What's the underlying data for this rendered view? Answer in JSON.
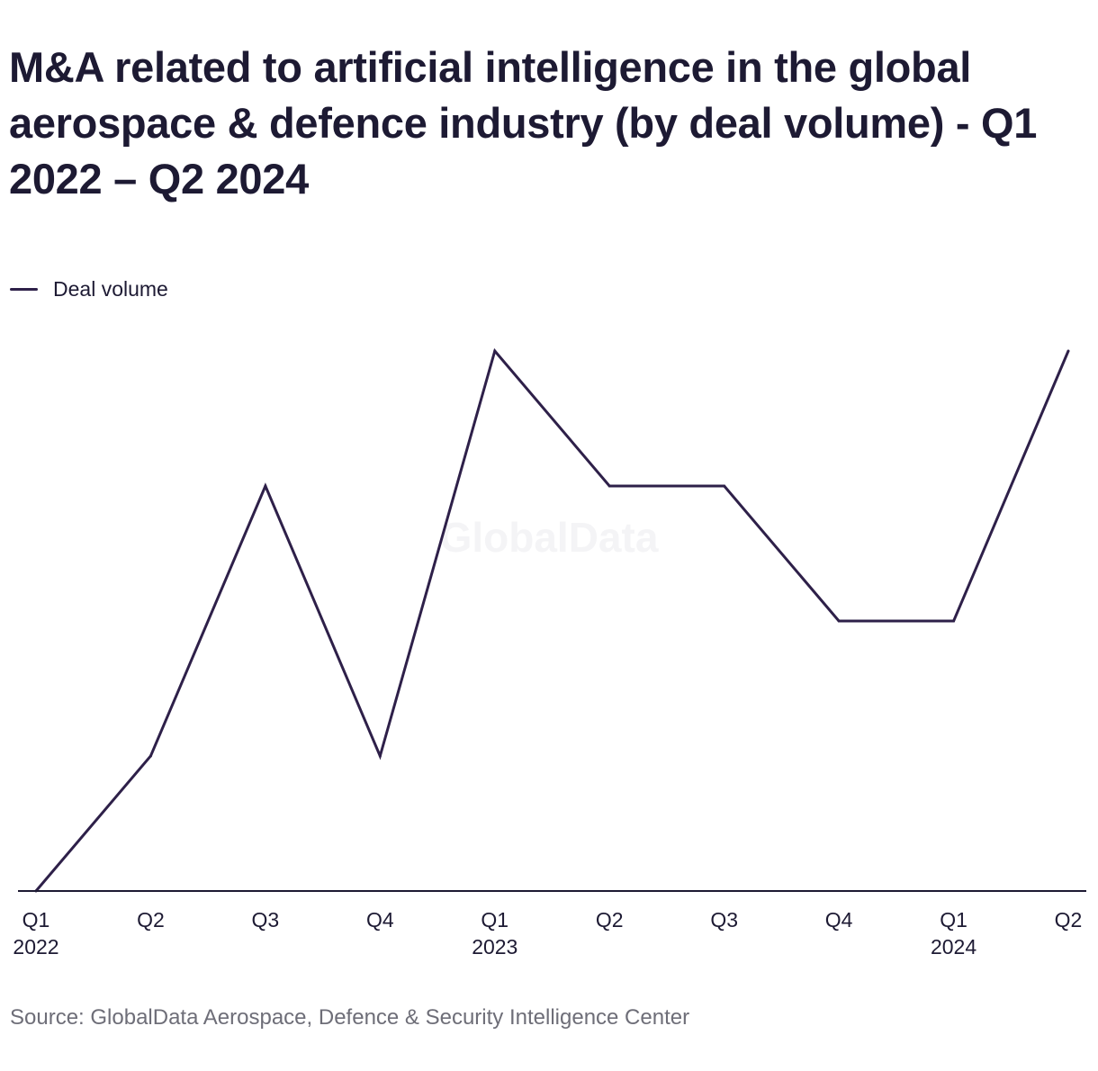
{
  "title": "M&A related to artificial intelligence in the global aerospace & defence industry (by deal volume) - Q1 2022 – Q2 2024",
  "watermark": "GlobalData",
  "source": "Source: GlobalData Aerospace, Defence & Security Intelligence Center",
  "colors": {
    "series": "#2e2049",
    "axis": "#1d1a33",
    "text": "#1d1a33",
    "source_text": "#6e6e78"
  },
  "chart_data": {
    "type": "line",
    "title": "M&A related to artificial intelligence in the global aerospace & defence industry (by deal volume) - Q1 2022 – Q2 2024",
    "xlabel": "",
    "ylabel": "",
    "y_axis_shown": false,
    "grid": false,
    "legend_position": "top-left",
    "categories": [
      {
        "quarter": "Q1",
        "year": "2022"
      },
      {
        "quarter": "Q2",
        "year": ""
      },
      {
        "quarter": "Q3",
        "year": ""
      },
      {
        "quarter": "Q4",
        "year": ""
      },
      {
        "quarter": "Q1",
        "year": "2023"
      },
      {
        "quarter": "Q2",
        "year": ""
      },
      {
        "quarter": "Q3",
        "year": ""
      },
      {
        "quarter": "Q4",
        "year": ""
      },
      {
        "quarter": "Q1",
        "year": "2024"
      },
      {
        "quarter": "Q2",
        "year": ""
      }
    ],
    "series": [
      {
        "name": "Deal volume",
        "color": "#2e2049",
        "values": [
          0,
          1,
          3,
          1,
          4,
          3,
          3,
          2,
          2,
          4
        ]
      }
    ],
    "ylim": [
      0,
      4
    ]
  }
}
